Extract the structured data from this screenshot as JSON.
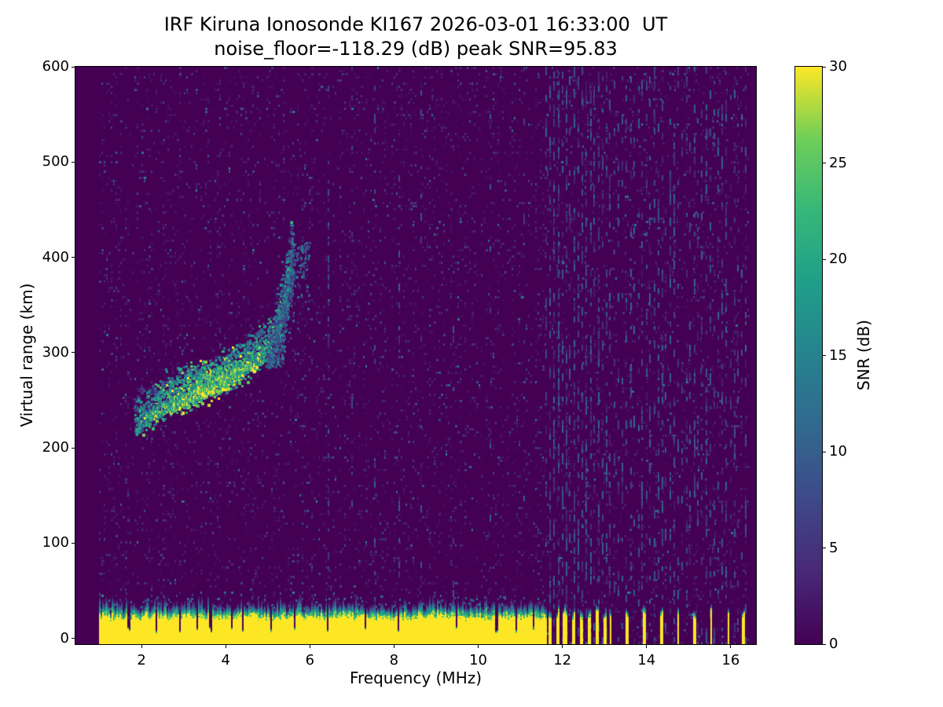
{
  "chart_data": {
    "type": "heatmap",
    "title": "IRF Kiruna Ionosonde KI167 2026-03-01 16:33:00  UT",
    "subtitle": "noise_floor=-118.29 (dB) peak SNR=95.83",
    "station": "IRF Kiruna Ionosonde KI167",
    "timestamp_ut": "2026-03-01 16:33:00",
    "noise_floor_db": -118.29,
    "peak_snr_db": 95.83,
    "xlabel": "Frequency (MHz)",
    "ylabel": "Virtual range (km)",
    "colorbar_label": "SNR (dB)",
    "xlim": [
      0.43,
      16.6
    ],
    "ylim": [
      -6,
      600
    ],
    "x_ticks": [
      2,
      4,
      6,
      8,
      10,
      12,
      14,
      16
    ],
    "y_ticks": [
      0,
      100,
      200,
      300,
      400,
      500,
      600
    ],
    "colorbar_ticks": [
      0,
      5,
      10,
      15,
      20,
      25,
      30
    ],
    "colorbar_range": [
      0,
      30
    ],
    "colormap": "viridis",
    "colormap_stops": [
      [
        0.0,
        "#440154"
      ],
      [
        0.125,
        "#482878"
      ],
      [
        0.25,
        "#3e4989"
      ],
      [
        0.375,
        "#31688e"
      ],
      [
        0.5,
        "#26828e"
      ],
      [
        0.625,
        "#1f9e89"
      ],
      [
        0.75,
        "#35b779"
      ],
      [
        0.875,
        "#6ece58"
      ],
      [
        1.0,
        "#fde725"
      ]
    ],
    "data_freq_range_mhz": [
      1.0,
      16.45
    ],
    "background_speckle": {
      "density": 0.17,
      "mean_snr_db": 2.4
    },
    "f_layer_trace": [
      [
        1.82,
        223
      ],
      [
        2.0,
        228
      ],
      [
        2.2,
        233
      ],
      [
        2.4,
        238
      ],
      [
        2.6,
        243
      ],
      [
        2.8,
        247
      ],
      [
        3.0,
        251
      ],
      [
        3.2,
        255
      ],
      [
        3.4,
        259
      ],
      [
        3.6,
        263
      ],
      [
        3.8,
        267
      ],
      [
        4.0,
        271
      ],
      [
        4.2,
        276
      ],
      [
        4.4,
        281
      ],
      [
        4.6,
        287
      ],
      [
        4.8,
        294
      ],
      [
        4.95,
        301
      ],
      [
        5.1,
        311
      ],
      [
        5.2,
        322
      ],
      [
        5.3,
        336
      ],
      [
        5.4,
        355
      ],
      [
        5.47,
        375
      ],
      [
        5.52,
        393
      ],
      [
        5.56,
        410
      ]
    ],
    "spread_f_region": {
      "f": [
        4.95,
        5.98
      ],
      "km": [
        295,
        418
      ],
      "dots": 650
    },
    "ground_echo": {
      "solid_until_mhz": 11.6,
      "solid_top_km": 22,
      "fringe_top_km": 40,
      "notches_mhz": [
        1.68,
        2.32,
        2.9,
        3.3,
        3.62,
        4.12,
        4.38,
        5.06,
        5.62,
        6.42,
        7.3,
        8.08,
        9.48,
        10.42,
        10.9,
        11.3
      ],
      "bars_mhz_width": [
        [
          11.68,
          0.08
        ],
        [
          11.86,
          0.08
        ],
        [
          12.05,
          0.09
        ],
        [
          12.24,
          0.09
        ],
        [
          12.43,
          0.08
        ],
        [
          12.62,
          0.08
        ],
        [
          12.81,
          0.08
        ],
        [
          13.0,
          0.07
        ],
        [
          13.13,
          0.05
        ],
        [
          13.52,
          0.06
        ],
        [
          13.93,
          0.06
        ],
        [
          14.33,
          0.06
        ],
        [
          14.74,
          0.06
        ],
        [
          15.13,
          0.06
        ],
        [
          15.52,
          0.06
        ],
        [
          15.93,
          0.06
        ],
        [
          16.28,
          0.06
        ]
      ]
    },
    "interference": {
      "columns": [
        {
          "f": 6.45,
          "strength": 0.55
        },
        {
          "f": 7.0,
          "strength": 0.2
        },
        {
          "f": 7.55,
          "strength": 0.3
        },
        {
          "f": 8.12,
          "strength": 0.25
        },
        {
          "f": 8.65,
          "strength": 0.3
        },
        {
          "f": 9.42,
          "strength": 0.25
        },
        {
          "f": 10.28,
          "strength": 0.2
        },
        {
          "f": 11.1,
          "strength": 0.2
        }
      ],
      "hf_band": {
        "from": 11.62,
        "to": 16.45,
        "spacing_mhz": 0.095,
        "dense_until": 13.2,
        "strength": 0.8
      }
    }
  }
}
